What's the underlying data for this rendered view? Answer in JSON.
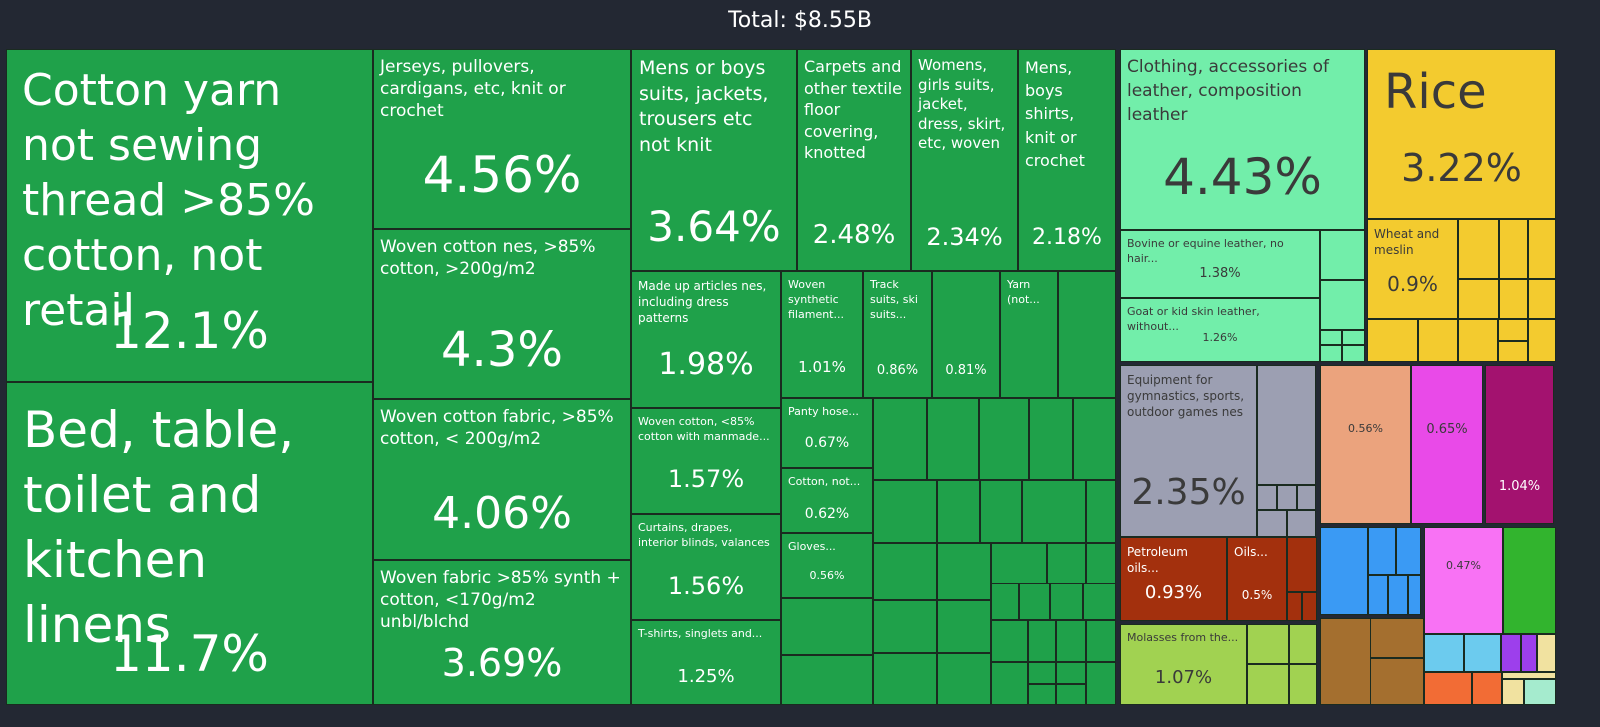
{
  "title": "Total: $8.55B",
  "colors": {
    "textiles": "#1fa14a",
    "leather": "#72eeaa",
    "cereals": "#f3cb2f",
    "toys": "#9c9fb2",
    "mineral": "#a3300d",
    "sugar": "#a1d251",
    "salmon": "#eba37d",
    "magenta": "#e94ae8",
    "purple": "#a3126f",
    "blue": "#3a9af4",
    "pink": "#f872f4",
    "green2": "#32b42e",
    "brown": "#a46f2f",
    "skyblue": "#6ccbee",
    "violet": "#9d3fec",
    "orange": "#f26c35",
    "cream": "#f1e2a0",
    "mint": "#a5ebce",
    "dark_text": "#3a3a3a",
    "light_text": "#ffffff"
  },
  "chart_data": {
    "type": "treemap",
    "title": "Total: $8.55B",
    "total": "$8.55B",
    "items": [
      {
        "label": "Cotton yarn not sewing thread >85% cotton, not retail",
        "value": "12.1%",
        "group": "textiles"
      },
      {
        "label": "Bed, table, toilet and kitchen linens",
        "value": "11.7%",
        "group": "textiles"
      },
      {
        "label": "Jerseys, pullovers, cardigans, etc, knit or crochet",
        "value": "4.56%",
        "group": "textiles"
      },
      {
        "label": "Woven cotton nes, >85% cotton, >200g/m2",
        "value": "4.3%",
        "group": "textiles"
      },
      {
        "label": "Woven cotton fabric, >85% cotton, < 200g/m2",
        "value": "4.06%",
        "group": "textiles"
      },
      {
        "label": "Woven fabric >85% synth + cotton, <170g/m2 unbl/blchd",
        "value": "3.69%",
        "group": "textiles"
      },
      {
        "label": "Mens or boys suits, jackets, trousers etc not knit",
        "value": "3.64%",
        "group": "textiles"
      },
      {
        "label": "Carpets and other textile floor covering, knotted",
        "value": "2.48%",
        "group": "textiles"
      },
      {
        "label": "Womens, girls suits, jacket, dress, skirt, etc, woven",
        "value": "2.34%",
        "group": "textiles"
      },
      {
        "label": "Mens, boys shirts, knit or crochet",
        "value": "2.18%",
        "group": "textiles"
      },
      {
        "label": "Made up articles nes, including dress patterns",
        "value": "1.98%",
        "group": "textiles"
      },
      {
        "label": "Woven cotton, <85% cotton with manmade...",
        "value": "1.57%",
        "group": "textiles"
      },
      {
        "label": "Curtains, drapes, interior blinds, valances",
        "value": "1.56%",
        "group": "textiles"
      },
      {
        "label": "T-shirts, singlets and...",
        "value": "1.25%",
        "group": "textiles"
      },
      {
        "label": "Woven synthetic filament...",
        "value": "1.01%",
        "group": "textiles"
      },
      {
        "label": "Track suits, ski suits...",
        "value": "0.86%",
        "group": "textiles"
      },
      {
        "label": "",
        "value": "0.81%",
        "group": "textiles"
      },
      {
        "label": "Yarn (not...",
        "value": "",
        "group": "textiles"
      },
      {
        "label": "Panty hose...",
        "value": "0.67%",
        "group": "textiles"
      },
      {
        "label": "Cotton, not...",
        "value": "0.62%",
        "group": "textiles"
      },
      {
        "label": "Gloves...",
        "value": "0.56%",
        "group": "textiles"
      },
      {
        "label": "Clothing, accessories of leather, composition leather",
        "value": "4.43%",
        "group": "leather"
      },
      {
        "label": "Bovine or equine leather, no hair...",
        "value": "1.38%",
        "group": "leather"
      },
      {
        "label": "Goat or kid skin leather, without...",
        "value": "1.26%",
        "group": "leather"
      },
      {
        "label": "Rice",
        "value": "3.22%",
        "group": "cereals"
      },
      {
        "label": "Wheat and meslin",
        "value": "0.9%",
        "group": "cereals"
      },
      {
        "label": "Equipment for gymnastics, sports, outdoor games nes",
        "value": "2.35%",
        "group": "toys"
      },
      {
        "label": "Petroleum oils...",
        "value": "0.93%",
        "group": "mineral"
      },
      {
        "label": "Oils...",
        "value": "0.5%",
        "group": "mineral"
      },
      {
        "label": "Molasses from the...",
        "value": "1.07%",
        "group": "sugar"
      },
      {
        "label": "",
        "value": "0.56%",
        "group": "salmon"
      },
      {
        "label": "",
        "value": "0.65%",
        "group": "magenta"
      },
      {
        "label": "",
        "value": "1.04%",
        "group": "purple"
      },
      {
        "label": "",
        "value": "0.47%",
        "group": "pink"
      }
    ]
  }
}
